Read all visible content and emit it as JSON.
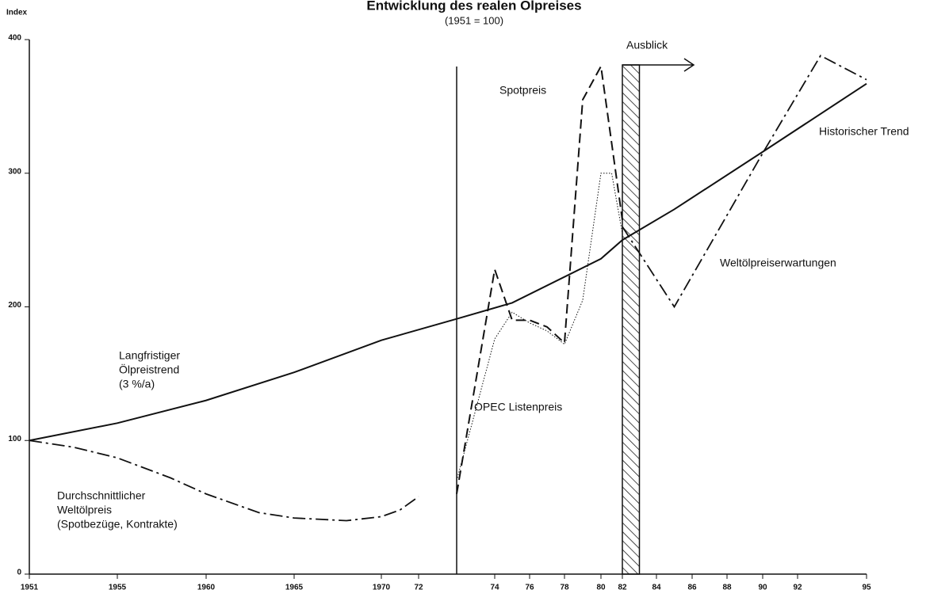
{
  "chart_data": {
    "type": "line",
    "title": "Entwicklung des realen Ölpreises",
    "subtitle": "(1951 = 100)",
    "y_label": "Index",
    "ylim": [
      0,
      400
    ],
    "yticks": [
      0,
      100,
      200,
      300,
      400
    ],
    "xlim": [
      1951,
      1995
    ],
    "xticks": [
      {
        "value": 1951,
        "label": "1951"
      },
      {
        "value": 1955,
        "label": "1955"
      },
      {
        "value": 1960,
        "label": "1960"
      },
      {
        "value": 1965,
        "label": "1965"
      },
      {
        "value": 1970,
        "label": "1970"
      },
      72,
      74,
      76,
      78,
      80,
      82,
      84,
      86,
      88,
      90,
      92,
      95
    ],
    "reference_line_x": 1973,
    "shaded_x": [
      1982,
      1983
    ],
    "outlook_label": "Ausblick",
    "trend_label": [
      "Langfristiger",
      "Ölpreistrend",
      "(3 %/a)"
    ],
    "series": [
      {
        "name": [
          "Historischer Trend"
        ],
        "style": "solid",
        "x": [
          1951,
          1955,
          1960,
          1965,
          1970,
          1973,
          1975,
          1980,
          1982,
          1985,
          1990,
          1995
        ],
        "values": [
          100,
          113,
          130,
          151,
          175,
          191,
          203,
          236,
          250,
          273,
          316,
          367
        ]
      },
      {
        "name": [
          "Durchschnittlicher",
          "Weltölpreis",
          "(Spotbezüge, Kontrakte)"
        ],
        "style": "dashdot",
        "x": [
          1951,
          1953,
          1955,
          1958,
          1960,
          1963,
          1965,
          1968,
          1970,
          1971,
          1972
        ],
        "values": [
          100,
          95,
          87,
          72,
          60,
          46,
          42,
          40,
          43,
          48,
          58
        ]
      },
      {
        "name": [
          "Spotpreis"
        ],
        "style": "dashed",
        "x": [
          1973,
          1974,
          1975,
          1976,
          1977,
          1978,
          1979,
          1980,
          1982
        ],
        "values": [
          60,
          228,
          190,
          190,
          185,
          173,
          355,
          380,
          265
        ]
      },
      {
        "name": [
          "OPEC Listenpreis"
        ],
        "style": "dotted",
        "x": [
          1973,
          1974,
          1975,
          1976,
          1977,
          1978,
          1979,
          1980,
          1981,
          1982
        ],
        "values": [
          70,
          176,
          196,
          188,
          182,
          172,
          205,
          300,
          300,
          255
        ]
      },
      {
        "name": [
          "Weltölpreiserwartungen"
        ],
        "style": "dashdot",
        "x": [
          1982,
          1985,
          1990,
          1993,
          1995
        ],
        "values": [
          260,
          200,
          315,
          388,
          370
        ]
      }
    ]
  }
}
